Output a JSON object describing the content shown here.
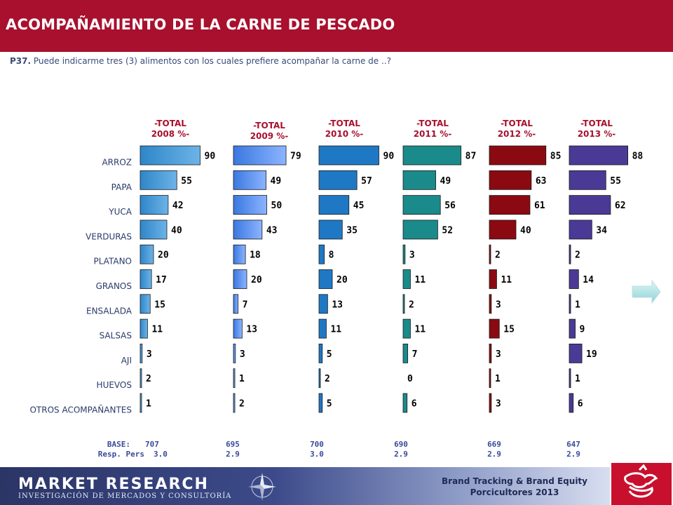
{
  "header": {
    "title": "ACOMPAÑAMIENTO DE LA CARNE DE  PESCADO"
  },
  "question": {
    "id": "P37.",
    "text": "Puede indicarme tres (3) alimentos con los cuales prefiere acompañar la carne de ..?"
  },
  "chart_data": {
    "type": "bar",
    "orientation": "horizontal",
    "categories": [
      "ARROZ",
      "PAPA",
      "YUCA",
      "VERDURAS",
      "PLATANO",
      "GRANOS",
      "ENSALADA",
      "SALSAS",
      "AJI",
      "HUEVOS",
      "OTROS ACOMPAÑANTES"
    ],
    "series": [
      {
        "title": [
          "-TOTAL",
          "2008 %-"
        ],
        "values": [
          90,
          55,
          42,
          40,
          20,
          17,
          15,
          11,
          3,
          2,
          1
        ],
        "color": "#2e86c8",
        "color_light": "#6db3e8",
        "base": "707",
        "resp": "3.0"
      },
      {
        "title": [
          "-TOTAL",
          "2009 %-"
        ],
        "values": [
          79,
          49,
          50,
          43,
          18,
          20,
          7,
          13,
          3,
          1,
          2
        ],
        "color": "#3a78e0",
        "color_light": "#8cb4ff",
        "base": "695",
        "resp": "2.9"
      },
      {
        "title": [
          "-TOTAL",
          "2010 %-"
        ],
        "values": [
          90,
          57,
          45,
          35,
          8,
          20,
          13,
          11,
          5,
          2,
          5
        ],
        "color": "#1f78c4",
        "color_light": "#1f78c4",
        "base": "700",
        "resp": "3.0"
      },
      {
        "title": [
          "-TOTAL",
          "2011 %-"
        ],
        "values": [
          87,
          49,
          56,
          52,
          3,
          11,
          2,
          11,
          7,
          0,
          6
        ],
        "color": "#1b8a8a",
        "color_light": "#1b8a8a",
        "base": "690",
        "resp": "2.9"
      },
      {
        "title": [
          "-TOTAL",
          "2012 %-"
        ],
        "values": [
          85,
          63,
          61,
          40,
          2,
          11,
          3,
          15,
          3,
          1,
          3
        ],
        "color": "#8b0a12",
        "color_light": "#8b0a12",
        "base": "669",
        "resp": "2.9"
      },
      {
        "title": [
          "-TOTAL",
          "2013 %-"
        ],
        "values": [
          88,
          55,
          62,
          34,
          2,
          14,
          1,
          9,
          19,
          1,
          6
        ],
        "color": "#4a3a96",
        "color_light": "#4a3a96",
        "base": "647",
        "resp": "2.9"
      }
    ],
    "base_label": "BASE:",
    "resp_label": "Resp. Pers"
  },
  "footer": {
    "logo_main": "MARKET RESEARCH",
    "logo_sub": "INVESTIGACIÓN DE MERCADOS Y CONSULTORÍA",
    "brand_line1": "Brand Tracking & Brand Equity",
    "brand_line2": "Porcicultores 2013"
  }
}
